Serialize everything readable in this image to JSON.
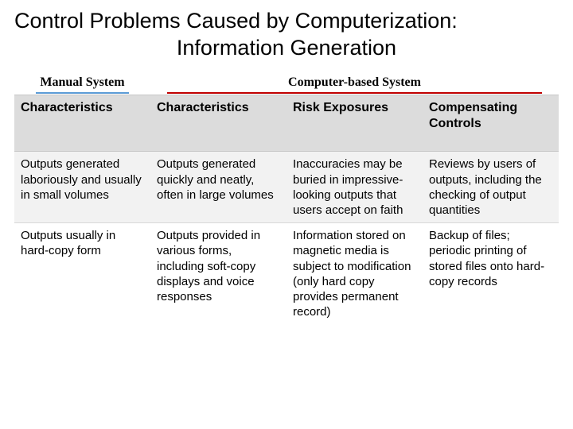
{
  "title_line1": "Control Problems Caused by Computerization:",
  "title_line2": "Information Generation",
  "sub_headers": {
    "manual": "Manual System",
    "computer": "Computer-based System"
  },
  "rule_colors": {
    "manual": "#5b9bd5",
    "computer": "#c00000"
  },
  "table": {
    "headers": [
      "Characteristics",
      "Characteristics",
      "Risk Exposures",
      "Compensating Controls"
    ],
    "rows": [
      [
        "Outputs generated laboriously and usually in small volumes",
        "Outputs generated quickly and neatly, often in large volumes",
        "Inaccuracies may be buried in impressive-looking outputs that users accept on faith",
        "Reviews by users of outputs, including the checking of output quantities"
      ],
      [
        "Outputs usually in hard-copy form",
        "Outputs provided in various forms, including soft-copy displays and voice responses",
        "Information stored on magnetic media is subject to modification (only hard copy provides permanent record)",
        "Backup of files; periodic printing of stored files onto hard-copy records"
      ]
    ]
  },
  "colors": {
    "header_bg": "#dcdcdc",
    "row_alt_bg": "#f2f2f2",
    "row_bg": "#ffffff",
    "border": "#c8c8c8",
    "text": "#000000"
  },
  "fonts": {
    "title_size": 27,
    "subheader_size": 16,
    "header_size": 16,
    "cell_size": 15
  }
}
